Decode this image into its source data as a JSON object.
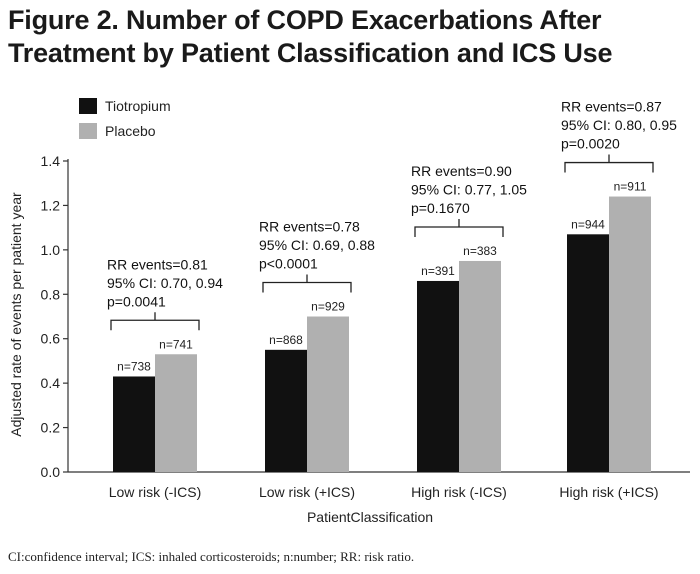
{
  "title": "Figure 2. Number of COPD Exacerbations After Treatment by Patient Classification and ICS Use",
  "footnote": "CI:confidence interval;  ICS: inhaled corticosteroids; n:number; RR: risk ratio.",
  "colors": {
    "tiotropium": "#111111",
    "placebo": "#b0b0b0",
    "axis": "#333333"
  },
  "chart_data": {
    "type": "bar",
    "xlabel": "PatientClassification",
    "ylabel": "Adjusted rate of events per patient year",
    "ylim": [
      0,
      1.4
    ],
    "yticks": [
      "0.0",
      "0.2",
      "0.4",
      "0.6",
      "0.8",
      "1.0",
      "1.2",
      "1.4"
    ],
    "grid": false,
    "legend_position": "top-left",
    "categories": [
      "Low risk (-ICS)",
      "Low risk (+ICS)",
      "High risk (-ICS)",
      "High risk (+ICS)"
    ],
    "series": [
      {
        "name": "Tiotropium",
        "values": [
          0.43,
          0.55,
          0.86,
          1.07
        ],
        "n_labels": [
          "n=738",
          "n=868",
          "n=391",
          "n=944"
        ]
      },
      {
        "name": "Placebo",
        "values": [
          0.53,
          0.7,
          0.95,
          1.24
        ],
        "n_labels": [
          "n=741",
          "n=929",
          "n=383",
          "n=911"
        ]
      }
    ],
    "annotations": [
      [
        "RR events=0.81",
        "95% CI: 0.70, 0.94",
        "p=0.0041"
      ],
      [
        "RR events=0.78",
        "95% CI: 0.69, 0.88",
        "p<0.0001"
      ],
      [
        "RR events=0.90",
        "95% CI: 0.77, 1.05",
        "p=0.1670"
      ],
      [
        "RR events=0.87",
        "95% CI: 0.80, 0.95",
        "p=0.0020"
      ]
    ]
  }
}
